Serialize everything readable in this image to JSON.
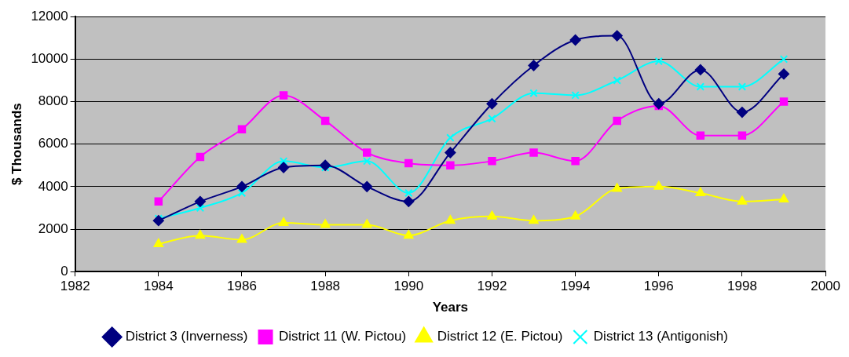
{
  "chart_data": {
    "type": "line",
    "xlabel": "Years",
    "ylabel": "$ Thousands",
    "x": [
      1984,
      1985,
      1986,
      1987,
      1988,
      1989,
      1990,
      1991,
      1992,
      1993,
      1994,
      1995,
      1996,
      1997,
      1998,
      1999
    ],
    "xlim": [
      1982,
      2000
    ],
    "xticks": [
      1982,
      1984,
      1986,
      1988,
      1990,
      1992,
      1994,
      1996,
      1998,
      2000
    ],
    "ylim": [
      0,
      12000
    ],
    "yticks": [
      0,
      2000,
      4000,
      6000,
      8000,
      10000,
      12000
    ],
    "grid": "y",
    "legend": "bottom",
    "series": [
      {
        "name": "District 3 (Inverness)",
        "color": "#000080",
        "marker": "diamond",
        "values": [
          2400,
          3300,
          4000,
          4900,
          5000,
          4000,
          3300,
          5600,
          7900,
          9700,
          10900,
          11100,
          7900,
          9500,
          7500,
          9300
        ]
      },
      {
        "name": "District 11 (W. Pictou)",
        "color": "#ff00ff",
        "marker": "square",
        "values": [
          3300,
          5400,
          6700,
          8300,
          7100,
          5600,
          5100,
          5000,
          5200,
          5600,
          5200,
          7100,
          7800,
          6400,
          6400,
          8000
        ]
      },
      {
        "name": "District 12 (E. Pictou)",
        "color": "#ffff00",
        "marker": "triangle",
        "values": [
          1300,
          1700,
          1500,
          2300,
          2200,
          2200,
          1700,
          2400,
          2600,
          2400,
          2600,
          3900,
          4000,
          3700,
          3300,
          3400
        ]
      },
      {
        "name": "District 13 (Antigonish)",
        "color": "#00ffff",
        "marker": "cross",
        "values": [
          2500,
          3000,
          3700,
          5200,
          4900,
          5200,
          3700,
          6300,
          7200,
          8400,
          8300,
          9000,
          9900,
          8700,
          8700,
          10000
        ]
      }
    ]
  }
}
